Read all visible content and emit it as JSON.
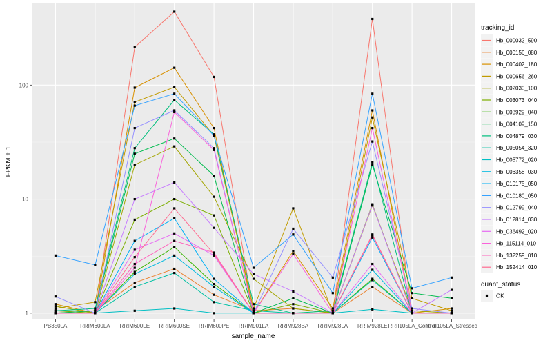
{
  "chart_data": {
    "type": "line",
    "title": "",
    "xlabel": "sample_name",
    "ylabel": "FPKM + 1",
    "yscale": "log10",
    "ylim": [
      0.88,
      520
    ],
    "yticks": [
      1,
      10,
      100
    ],
    "ytick_labels": [
      "1",
      "10",
      "100"
    ],
    "grid": true,
    "legend_position": "right",
    "categories": [
      "PB350LA",
      "RRIM600LA",
      "RRIM600LE",
      "RRIM600SE",
      "RRIM600PE",
      "RRIM901LA",
      "RRIM928BA",
      "RRIM928LA",
      "RRIM928LE",
      "RRII105LA_Control",
      "RRII105LA_Stressed"
    ],
    "color_legend": {
      "title": "tracking_id"
    },
    "shape_legend": {
      "title": "quant_status",
      "entries": [
        "OK"
      ]
    },
    "series": [
      {
        "name": "Hb_000032_590",
        "color": "#F8766D",
        "values": [
          1.05,
          1.0,
          215,
          440,
          118,
          1.0,
          1.0,
          1.0,
          380,
          1.0,
          1.0
        ]
      },
      {
        "name": "Hb_000156_080",
        "color": "#EA8331",
        "values": [
          1.0,
          1.05,
          1.85,
          2.45,
          1.45,
          1.05,
          1.1,
          1.0,
          1.7,
          1.0,
          1.0
        ]
      },
      {
        "name": "Hb_000402_180",
        "color": "#D89000",
        "values": [
          1.2,
          1.0,
          95,
          142,
          42,
          1.0,
          3.5,
          1.1,
          60,
          1.0,
          1.1
        ]
      },
      {
        "name": "Hb_000656_260",
        "color": "#C09B00",
        "values": [
          1.1,
          1.25,
          71,
          96,
          36,
          1.1,
          8.3,
          1.0,
          52,
          1.35,
          1.05
        ]
      },
      {
        "name": "Hb_002030_100",
        "color": "#A3A500",
        "values": [
          1.15,
          1.0,
          20,
          29,
          10.5,
          2.0,
          1.1,
          1.0,
          8.8,
          1.05,
          1.0
        ]
      },
      {
        "name": "Hb_003073_040",
        "color": "#7CAE00",
        "values": [
          1.05,
          1.0,
          6.6,
          10,
          7.2,
          1.0,
          1.2,
          1.0,
          9.0,
          1.0,
          1.0
        ]
      },
      {
        "name": "Hb_003929_040",
        "color": "#39B600",
        "values": [
          1.0,
          1.0,
          2.3,
          3.8,
          1.8,
          1.0,
          1.0,
          1.0,
          2.0,
          1.0,
          1.0
        ]
      },
      {
        "name": "Hb_004109_150",
        "color": "#00BB4E",
        "values": [
          1.0,
          1.05,
          25,
          34,
          16,
          1.0,
          1.35,
          1.0,
          20,
          1.5,
          1.35
        ]
      },
      {
        "name": "Hb_004879_030",
        "color": "#00BF7D",
        "values": [
          1.05,
          1.1,
          28,
          74,
          37,
          1.2,
          1.0,
          1.05,
          21,
          1.0,
          1.0
        ]
      },
      {
        "name": "Hb_005054_320",
        "color": "#00C1A3",
        "values": [
          1.0,
          1.0,
          1.7,
          2.25,
          1.25,
          1.05,
          1.0,
          1.0,
          1.95,
          1.0,
          1.0
        ]
      },
      {
        "name": "Hb_005772_020",
        "color": "#00BFC4",
        "values": [
          1.0,
          1.0,
          1.05,
          1.1,
          1.0,
          1.0,
          1.0,
          1.0,
          1.08,
          1.0,
          1.0
        ]
      },
      {
        "name": "Hb_006358_030",
        "color": "#00BAE0",
        "values": [
          1.0,
          1.0,
          2.2,
          3.2,
          1.7,
          1.0,
          1.0,
          1.0,
          2.4,
          1.0,
          1.0
        ]
      },
      {
        "name": "Hb_010175_050",
        "color": "#00B0F6",
        "values": [
          1.0,
          1.0,
          4.3,
          6.8,
          2.0,
          1.0,
          1.0,
          1.0,
          4.6,
          1.0,
          1.0
        ]
      },
      {
        "name": "Hb_010180_050",
        "color": "#35A2FF",
        "values": [
          3.2,
          2.65,
          66,
          84,
          36,
          2.5,
          4.9,
          1.5,
          84,
          1.65,
          2.05
        ]
      },
      {
        "name": "Hb_012799_040",
        "color": "#9590FF",
        "values": [
          1.4,
          1.0,
          42,
          60,
          28,
          1.0,
          5.5,
          2.05,
          32,
          1.1,
          1.0
        ]
      },
      {
        "name": "Hb_012814_030",
        "color": "#C77CFF",
        "values": [
          1.0,
          1.0,
          10,
          14,
          5.6,
          2.2,
          1.55,
          1.0,
          8.9,
          1.0,
          1.6
        ]
      },
      {
        "name": "Hb_036492_020",
        "color": "#E76BF3",
        "values": [
          1.0,
          1.0,
          3.6,
          5.0,
          3.2,
          1.0,
          1.0,
          1.0,
          2.7,
          1.0,
          1.0
        ]
      },
      {
        "name": "Hb_115114_010",
        "color": "#FA62DB",
        "values": [
          1.0,
          1.0,
          2.5,
          58,
          27,
          1.0,
          3.3,
          1.0,
          42,
          1.0,
          1.0
        ]
      },
      {
        "name": "Hb_132259_010",
        "color": "#FF62BC",
        "values": [
          1.0,
          1.0,
          2.7,
          4.3,
          3.4,
          1.0,
          1.0,
          1.0,
          4.8,
          1.0,
          1.0
        ]
      },
      {
        "name": "Hb_152414_010",
        "color": "#FF6C91",
        "values": [
          1.0,
          1.0,
          3.1,
          8.3,
          3.3,
          1.0,
          1.0,
          1.0,
          4.9,
          1.0,
          1.0
        ]
      }
    ]
  }
}
